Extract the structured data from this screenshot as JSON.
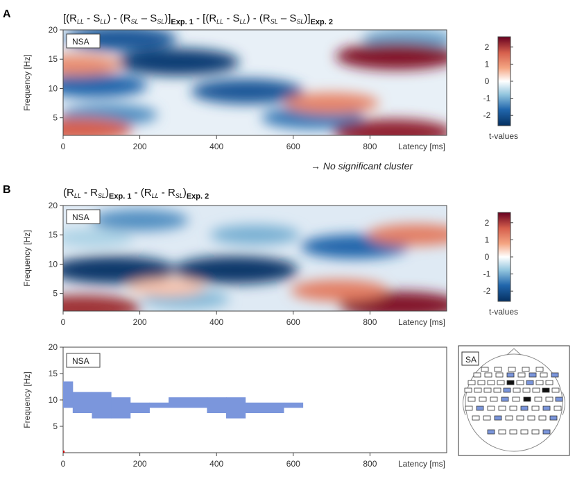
{
  "chart_data": [
    {
      "panel": "A",
      "type": "heatmap",
      "title_parts": {
        "open": "[(R",
        "ll1": "LL",
        "m1": " - S",
        "ll2": "LL",
        "m2": ") - (R",
        "sl1": "SL",
        "m3": " – S",
        "sl2": "SL",
        "close": ")]",
        "exp1": "Exp. 1",
        "mid": " - [(R",
        "ll3": "LL",
        "m4": " - S",
        "ll4": "LL",
        "m5": ") - (R",
        "sl3": "SL",
        "m6": " – S",
        "sl4": "SL",
        "close2": ")]",
        "exp2": "Exp. 2"
      },
      "box_label": "NSA",
      "xlabel": "Latency [ms]",
      "ylabel": "Frequency [Hz]",
      "xlim": [
        0,
        1000
      ],
      "ylim": [
        2,
        20
      ],
      "xticks": [
        0,
        200,
        400,
        600,
        800
      ],
      "yticks": [
        5,
        10,
        15,
        20
      ],
      "colorbar": {
        "label": "t-values",
        "ticks": [
          2,
          1,
          0,
          -1,
          -2
        ],
        "range": [
          -2.6,
          2.6
        ]
      },
      "note": "→ No significant cluster",
      "blobs": [
        {
          "latency_ms": 300,
          "freq_hz": 14.5,
          "t": -2.4
        },
        {
          "latency_ms": 150,
          "freq_hz": 18.5,
          "t": -2.0
        },
        {
          "latency_ms": 480,
          "freq_hz": 9.5,
          "t": -2.0
        },
        {
          "latency_ms": 80,
          "freq_hz": 10.5,
          "t": -1.8
        },
        {
          "latency_ms": 650,
          "freq_hz": 5.0,
          "t": -1.6
        },
        {
          "latency_ms": 120,
          "freq_hz": 5.5,
          "t": -1.4
        },
        {
          "latency_ms": 900,
          "freq_hz": 18.5,
          "t": -1.2
        },
        {
          "latency_ms": 870,
          "freq_hz": 15.5,
          "t": 2.4
        },
        {
          "latency_ms": 860,
          "freq_hz": 2.5,
          "t": 2.3
        },
        {
          "latency_ms": 700,
          "freq_hz": 7.5,
          "t": 1.3
        },
        {
          "latency_ms": 40,
          "freq_hz": 3.0,
          "t": 1.8
        },
        {
          "latency_ms": 30,
          "freq_hz": 14.0,
          "t": 1.2
        }
      ]
    },
    {
      "panel": "B",
      "type": "heatmap",
      "title_parts": {
        "open": "(R",
        "ll1": "LL",
        "m1": " - R",
        "sl1": "SL",
        "close": ")",
        "exp1": "Exp. 1",
        "mid": " - (R",
        "ll2": "LL",
        "m2": " - R",
        "sl2": "SL",
        "close2": ")",
        "exp2": "Exp. 2"
      },
      "box_label": "NSA",
      "xlabel": "Latency [ms]",
      "ylabel": "Frequency [Hz]",
      "xlim": [
        0,
        1000
      ],
      "ylim": [
        2,
        20
      ],
      "xticks": [
        0,
        200,
        400,
        600,
        800
      ],
      "yticks": [
        5,
        10,
        15,
        20
      ],
      "colorbar": {
        "label": "t-values",
        "ticks": [
          2,
          1,
          0,
          -1,
          -2
        ],
        "range": [
          -2.6,
          2.6
        ]
      },
      "blobs": [
        {
          "latency_ms": 130,
          "freq_hz": 9.0,
          "t": -2.5
        },
        {
          "latency_ms": 450,
          "freq_hz": 9.0,
          "t": -2.5
        },
        {
          "latency_ms": 760,
          "freq_hz": 13.0,
          "t": -1.8
        },
        {
          "latency_ms": 200,
          "freq_hz": 17.5,
          "t": -1.4
        },
        {
          "latency_ms": 500,
          "freq_hz": 15.0,
          "t": -1.1
        },
        {
          "latency_ms": 320,
          "freq_hz": 4.0,
          "t": -1.0
        },
        {
          "latency_ms": 880,
          "freq_hz": 3.0,
          "t": 2.4
        },
        {
          "latency_ms": 720,
          "freq_hz": 5.5,
          "t": 1.4
        },
        {
          "latency_ms": 920,
          "freq_hz": 15.0,
          "t": 1.4
        },
        {
          "latency_ms": 50,
          "freq_hz": 2.5,
          "t": 2.2
        },
        {
          "latency_ms": 270,
          "freq_hz": 6.0,
          "t": 0.6
        },
        {
          "latency_ms": 80,
          "freq_hz": 14.5,
          "t": -0.7
        }
      ]
    },
    {
      "panel": "B-cluster",
      "type": "area",
      "box_label": "NSA",
      "xlabel": "Latency [ms]",
      "ylabel": "Frequency [Hz]",
      "xlim": [
        0,
        1000
      ],
      "ylim": [
        0,
        20
      ],
      "xticks": [
        0,
        200,
        400,
        600,
        800
      ],
      "yticks": [
        5,
        10,
        15,
        20
      ],
      "series": [
        {
          "name": "significant cluster",
          "segments": [
            {
              "x": [
                0,
                25
              ],
              "y": [
                8.5,
                13.5
              ]
            },
            {
              "x": [
                25,
                75
              ],
              "y": [
                7.5,
                11.5
              ]
            },
            {
              "x": [
                75,
                125
              ],
              "y": [
                6.5,
                11.5
              ]
            },
            {
              "x": [
                125,
                175
              ],
              "y": [
                6.5,
                10.5
              ]
            },
            {
              "x": [
                175,
                225
              ],
              "y": [
                7.5,
                9.5
              ]
            },
            {
              "x": [
                225,
                275
              ],
              "y": [
                8.5,
                9.5
              ]
            },
            {
              "x": [
                275,
                375
              ],
              "y": [
                8.5,
                10.5
              ]
            },
            {
              "x": [
                375,
                425
              ],
              "y": [
                7.5,
                10.5
              ]
            },
            {
              "x": [
                425,
                475
              ],
              "y": [
                6.5,
                10.5
              ]
            },
            {
              "x": [
                475,
                575
              ],
              "y": [
                7.5,
                9.5
              ]
            },
            {
              "x": [
                575,
                625
              ],
              "y": [
                8.5,
                9.5
              ]
            }
          ]
        }
      ]
    }
  ],
  "sensor_map": {
    "label": "SA",
    "electrodes": [
      "o",
      "o",
      "o",
      "o",
      "o",
      "o",
      "o",
      "o",
      "b",
      "o",
      "b",
      "o",
      "b",
      "o",
      "o",
      "o",
      "o",
      "k",
      "o",
      "b",
      "o",
      "o",
      "o",
      "o",
      "o",
      "o",
      "b",
      "o",
      "o",
      "o",
      "k",
      "o",
      "o",
      "o",
      "o",
      "b",
      "o",
      "k",
      "o",
      "o",
      "b",
      "o",
      "b",
      "o",
      "o",
      "o",
      "b",
      "o",
      "b",
      "o",
      "o",
      "o",
      "b",
      "o",
      "o",
      "o",
      "o",
      "b",
      "b",
      "o",
      "o",
      "o",
      "o",
      "b"
    ]
  }
}
